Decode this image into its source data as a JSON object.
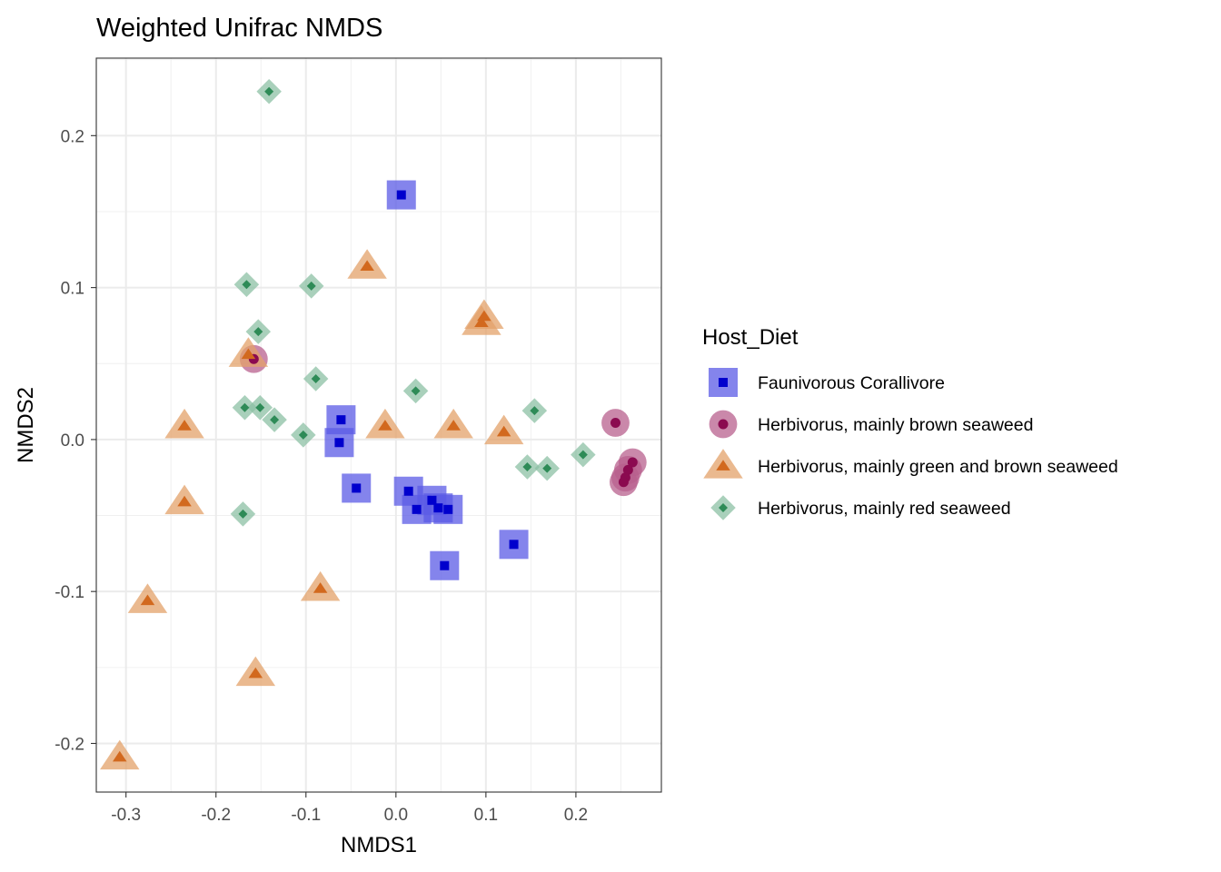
{
  "chart_data": {
    "type": "scatter",
    "title": "Weighted Unifrac NMDS",
    "xlabel": "NMDS1",
    "ylabel": "NMDS2",
    "xlim": [
      -0.333,
      0.295
    ],
    "ylim": [
      -0.232,
      0.251
    ],
    "x_ticks": [
      -0.3,
      -0.2,
      -0.1,
      0.0,
      0.1,
      0.2
    ],
    "x_tick_labels": [
      "-0.3",
      "-0.2",
      "-0.1",
      "0.0",
      "0.1",
      "0.2"
    ],
    "y_ticks": [
      -0.2,
      -0.1,
      0.0,
      0.1,
      0.2
    ],
    "y_tick_labels": [
      "-0.2",
      "-0.1",
      "0.0",
      "0.1",
      "0.2"
    ],
    "grid": true,
    "legend_title": "Host_Diet",
    "legend_position": "right",
    "series": [
      {
        "name": "Faunivorous Corallivore",
        "shape": "square",
        "color": "#0000cd",
        "halo_color": "#5b5be6",
        "points": [
          [
            0.006,
            0.161
          ],
          [
            -0.061,
            0.013
          ],
          [
            -0.063,
            -0.002
          ],
          [
            -0.044,
            -0.032
          ],
          [
            0.014,
            -0.034
          ],
          [
            0.023,
            -0.046
          ],
          [
            0.04,
            -0.04
          ],
          [
            0.047,
            -0.045
          ],
          [
            0.058,
            -0.046
          ],
          [
            0.054,
            -0.083
          ],
          [
            0.131,
            -0.069
          ]
        ]
      },
      {
        "name": "Herbivorus, mainly brown seaweed",
        "shape": "circle",
        "color": "#8b0a50",
        "halo_color": "#b8608e",
        "points": [
          [
            -0.158,
            0.053
          ],
          [
            0.244,
            0.011
          ],
          [
            0.263,
            -0.015
          ],
          [
            0.258,
            -0.02
          ],
          [
            0.255,
            -0.025
          ],
          [
            0.253,
            -0.028
          ]
        ]
      },
      {
        "name": "Herbivorus, mainly green and brown seaweed",
        "shape": "triangle",
        "color": "#d2691e",
        "halo_color": "#e3a26a",
        "points": [
          [
            -0.032,
            0.114
          ],
          [
            0.098,
            0.081
          ],
          [
            0.095,
            0.077
          ],
          [
            -0.164,
            0.056
          ],
          [
            -0.235,
            0.009
          ],
          [
            -0.012,
            0.009
          ],
          [
            0.064,
            0.009
          ],
          [
            0.12,
            0.005
          ],
          [
            -0.235,
            -0.041
          ],
          [
            -0.276,
            -0.106
          ],
          [
            -0.084,
            -0.098
          ],
          [
            -0.156,
            -0.154
          ],
          [
            -0.307,
            -0.209
          ]
        ]
      },
      {
        "name": "Herbivorus, mainly red seaweed",
        "shape": "diamond",
        "color": "#2e8b57",
        "halo_color": "#8cc0a4",
        "points": [
          [
            -0.141,
            0.229
          ],
          [
            -0.166,
            0.102
          ],
          [
            -0.094,
            0.101
          ],
          [
            -0.153,
            0.071
          ],
          [
            -0.089,
            0.04
          ],
          [
            0.022,
            0.032
          ],
          [
            -0.168,
            0.021
          ],
          [
            -0.151,
            0.021
          ],
          [
            -0.135,
            0.013
          ],
          [
            -0.103,
            0.003
          ],
          [
            0.154,
            0.019
          ],
          [
            0.208,
            -0.01
          ],
          [
            0.146,
            -0.018
          ],
          [
            0.168,
            -0.019
          ],
          [
            -0.17,
            -0.049
          ]
        ]
      }
    ]
  }
}
